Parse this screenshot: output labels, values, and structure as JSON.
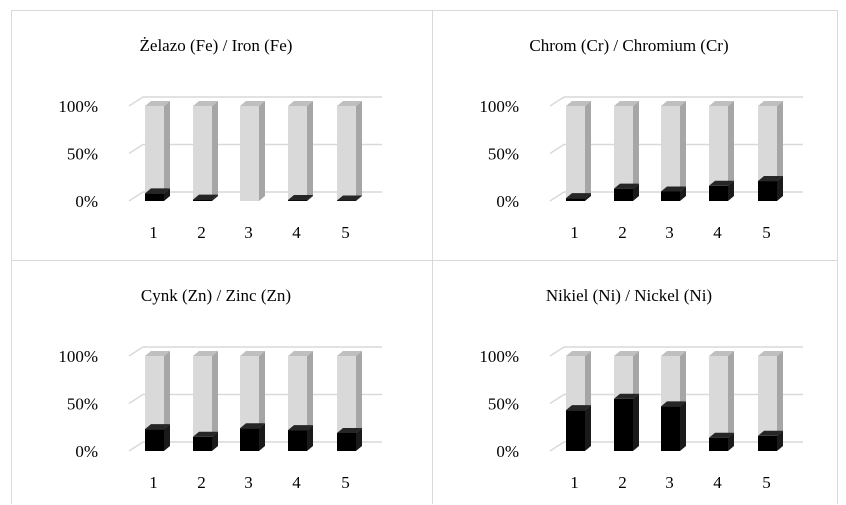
{
  "chart_data": [
    {
      "type": "bar",
      "stacked": true,
      "percent": true,
      "three_d": true,
      "title": "Żelazo (Fe) / Iron (Fe)",
      "categories": [
        "1",
        "2",
        "3",
        "4",
        "5"
      ],
      "y_ticks": [
        "0%",
        "50%",
        "100%"
      ],
      "ylim": [
        0,
        100
      ],
      "series": [
        {
          "values": [
            8,
            1.5,
            0,
            1,
            0.5
          ],
          "color": "#000000"
        },
        {
          "values": [
            92,
            98.5,
            100,
            99,
            99.5
          ],
          "color": "#d9d9d9"
        }
      ]
    },
    {
      "type": "bar",
      "stacked": true,
      "percent": true,
      "three_d": true,
      "title": "Chrom (Cr) / Chromium (Cr)",
      "categories": [
        "1",
        "2",
        "3",
        "4",
        "5"
      ],
      "y_ticks": [
        "0%",
        "50%",
        "100%"
      ],
      "ylim": [
        0,
        100
      ],
      "series": [
        {
          "values": [
            3,
            13,
            10,
            16,
            21
          ],
          "color": "#000000"
        },
        {
          "values": [
            97,
            87,
            90,
            84,
            79
          ],
          "color": "#d9d9d9"
        }
      ]
    },
    {
      "type": "bar",
      "stacked": true,
      "percent": true,
      "three_d": true,
      "title": "Cynk (Zn) / Zinc (Zn)",
      "categories": [
        "1",
        "2",
        "3",
        "4",
        "5"
      ],
      "y_ticks": [
        "0%",
        "50%",
        "100%"
      ],
      "ylim": [
        0,
        100
      ],
      "series": [
        {
          "values": [
            23,
            15,
            24,
            22,
            19
          ],
          "color": "#000000"
        },
        {
          "values": [
            77,
            85,
            76,
            78,
            81
          ],
          "color": "#d9d9d9"
        }
      ]
    },
    {
      "type": "bar",
      "stacked": true,
      "percent": true,
      "three_d": true,
      "title": "Nikiel (Ni) / Nickel (Ni)",
      "categories": [
        "1",
        "2",
        "3",
        "4",
        "5"
      ],
      "y_ticks": [
        "0%",
        "50%",
        "100%"
      ],
      "ylim": [
        0,
        100
      ],
      "series": [
        {
          "values": [
            43,
            55,
            47,
            14,
            16
          ],
          "color": "#000000"
        },
        {
          "values": [
            57,
            45,
            53,
            86,
            84
          ],
          "color": "#d9d9d9"
        }
      ]
    }
  ]
}
